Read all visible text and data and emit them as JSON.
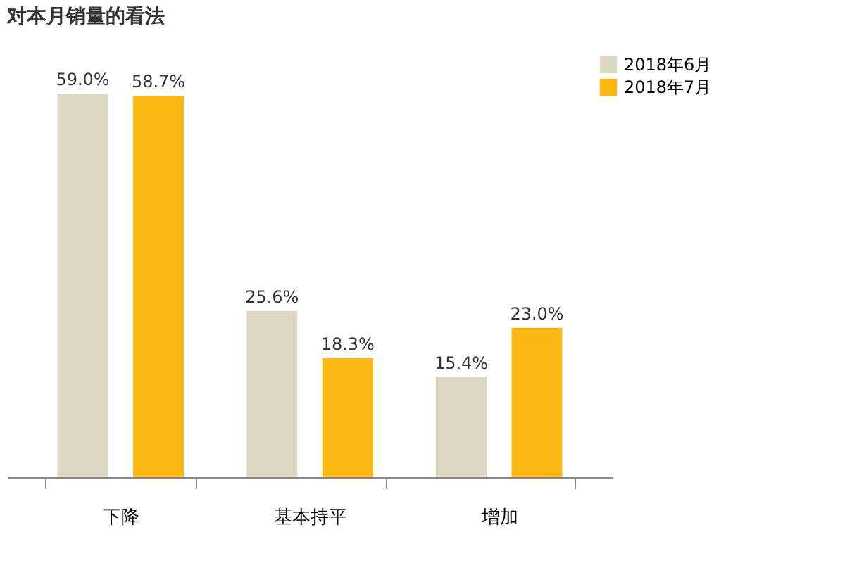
{
  "chart_data": {
    "type": "bar",
    "title": "对本月销量的看法",
    "categories": [
      "下降",
      "基本持平",
      "增加"
    ],
    "series": [
      {
        "name": "2018年6月",
        "color": "#dcd8c4",
        "values": [
          59.0,
          25.6,
          15.4
        ],
        "value_labels": [
          "59.0%",
          "25.6%",
          "15.4%"
        ]
      },
      {
        "name": "2018年7月",
        "color": "#fdb913",
        "values": [
          58.7,
          18.3,
          23.0
        ],
        "value_labels": [
          "58.7%",
          "18.3%",
          "23.0%"
        ]
      }
    ],
    "ylim": [
      0,
      65
    ],
    "legend": "right",
    "grid": false,
    "tick_labels": "x"
  }
}
